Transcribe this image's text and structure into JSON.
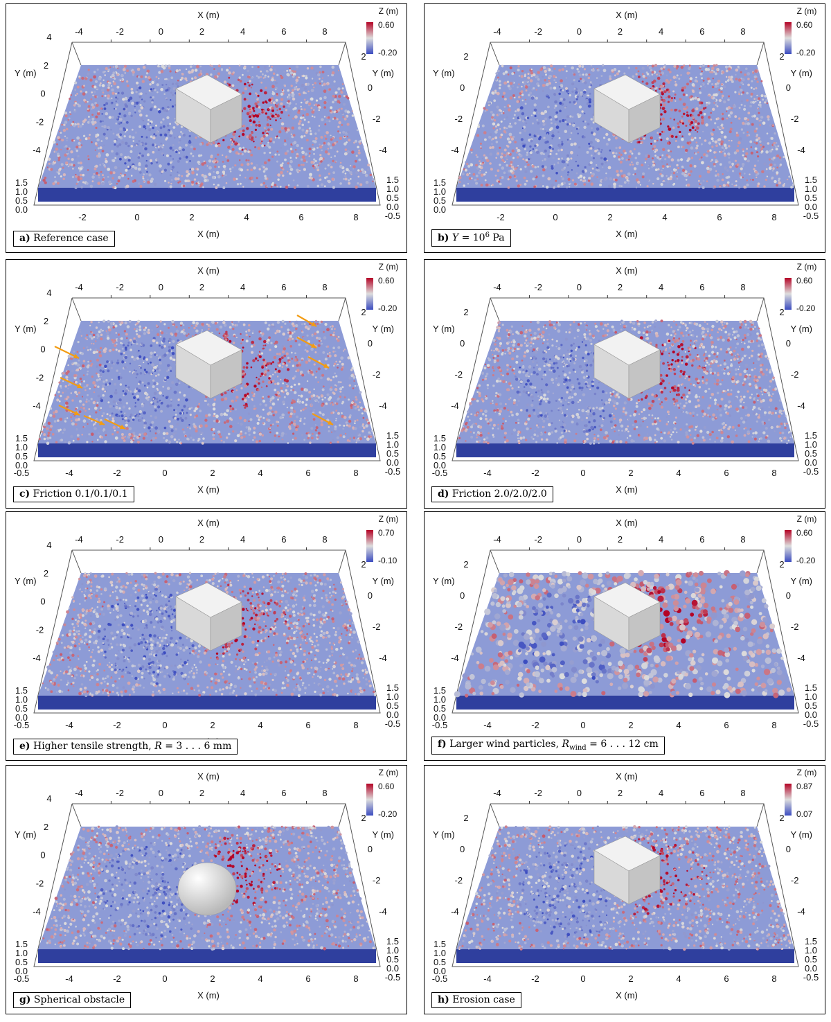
{
  "axis_labels": {
    "x": "X (m)",
    "y": "Y (m)",
    "z": "Z (m)"
  },
  "panels": [
    {
      "id": "a",
      "letter": "a)",
      "caption": "Reference case",
      "colorbar": {
        "max": "0.60",
        "min": "-0.20"
      },
      "x_ticks": [
        "-4",
        "-2",
        "0",
        "2",
        "4",
        "6",
        "8"
      ],
      "bottom_x_ticks": [
        "-2",
        "0",
        "2",
        "4",
        "6",
        "8"
      ],
      "y_ticks": [
        "4",
        "2",
        "0",
        "-2",
        "-4"
      ],
      "right_y_ticks": [
        "2",
        "0",
        "-2",
        "-4"
      ],
      "z_ticks": [
        "1.5",
        "1.0",
        "0.5",
        "0.0"
      ],
      "right_z_ticks": [
        "1.5",
        "1.0",
        "0.5",
        "0.0",
        "-0.5"
      ],
      "obstacle": "cube",
      "arrows": false,
      "large_particles": false
    },
    {
      "id": "b",
      "letter": "b)",
      "caption_parts": [
        "Y",
        " = 10",
        "6",
        " Pa"
      ],
      "colorbar": {
        "max": "0.60",
        "min": "-0.20"
      },
      "x_ticks": [
        "-4",
        "-2",
        "0",
        "2",
        "4",
        "6",
        "8"
      ],
      "bottom_x_ticks": [
        "-2",
        "0",
        "2",
        "4",
        "6",
        "8"
      ],
      "y_ticks": [
        "2",
        "0",
        "-2",
        "-4"
      ],
      "right_y_ticks": [
        "2",
        "0",
        "-2",
        "-4"
      ],
      "z_ticks": [
        "1.5",
        "1.0",
        "0.5",
        "0.0"
      ],
      "right_z_ticks": [
        "1.5",
        "1.0",
        "0.5",
        "0.0",
        "-0.5"
      ],
      "obstacle": "cube",
      "arrows": false,
      "large_particles": false
    },
    {
      "id": "c",
      "letter": "c)",
      "caption": "Friction 0.1/0.1/0.1",
      "colorbar": {
        "max": "0.60",
        "min": "-0.20"
      },
      "x_ticks": [
        "-4",
        "-2",
        "0",
        "2",
        "4",
        "6",
        "8"
      ],
      "bottom_x_ticks": [
        "-0.5",
        "-4",
        "-2",
        "0",
        "2",
        "4",
        "6",
        "8"
      ],
      "y_ticks": [
        "4",
        "2",
        "0",
        "-2",
        "-4"
      ],
      "right_y_ticks": [
        "2",
        "0",
        "-2",
        "-4"
      ],
      "z_ticks": [
        "1.5",
        "1.0",
        "0.5",
        "0.0"
      ],
      "right_z_ticks": [
        "1.5",
        "1.0",
        "0.5",
        "0.0",
        "-0.5"
      ],
      "obstacle": "cube",
      "arrows": true,
      "large_particles": false
    },
    {
      "id": "d",
      "letter": "d)",
      "caption": "Friction 2.0/2.0/2.0",
      "colorbar": {
        "max": "0.60",
        "min": "-0.20"
      },
      "x_ticks": [
        "-4",
        "-2",
        "0",
        "2",
        "4",
        "6",
        "8"
      ],
      "bottom_x_ticks": [
        "-0.5",
        "-4",
        "-2",
        "0",
        "2",
        "4",
        "6",
        "8"
      ],
      "y_ticks": [
        "2",
        "0",
        "-2",
        "-4"
      ],
      "right_y_ticks": [
        "2",
        "0",
        "-2",
        "-4"
      ],
      "z_ticks": [
        "1.5",
        "1.0",
        "0.5",
        "0.0"
      ],
      "right_z_ticks": [
        "1.5",
        "1.0",
        "0.5",
        "0.0",
        "-0.5"
      ],
      "obstacle": "cube",
      "arrows": false,
      "large_particles": false
    },
    {
      "id": "e",
      "letter": "e)",
      "caption_parts": [
        "Higher tensile strength, ",
        "R",
        " = 3 . . . 6 mm"
      ],
      "colorbar": {
        "max": "0.70",
        "min": "-0.10"
      },
      "x_ticks": [
        "-4",
        "-2",
        "0",
        "2",
        "4",
        "6",
        "8"
      ],
      "bottom_x_ticks": [
        "-0.5",
        "-4",
        "-2",
        "0",
        "2",
        "4",
        "6",
        "8"
      ],
      "y_ticks": [
        "4",
        "2",
        "0",
        "-2",
        "-4"
      ],
      "right_y_ticks": [
        "2",
        "0",
        "-2",
        "-4"
      ],
      "z_ticks": [
        "1.5",
        "1.0",
        "0.5",
        "0.0"
      ],
      "right_z_ticks": [
        "1.5",
        "1.0",
        "0.5",
        "0.0",
        "-0.5"
      ],
      "obstacle": "cube",
      "arrows": false,
      "large_particles": false
    },
    {
      "id": "f",
      "letter": "f)",
      "caption_parts": [
        "Larger wind particles, ",
        "R",
        "wind",
        " = 6 . . . 12 cm"
      ],
      "colorbar": {
        "max": "0.60",
        "min": "-0.20"
      },
      "x_ticks": [
        "-4",
        "-2",
        "0",
        "2",
        "4",
        "6",
        "8"
      ],
      "bottom_x_ticks": [
        "-0.5",
        "-4",
        "-2",
        "0",
        "2",
        "4",
        "6",
        "8"
      ],
      "y_ticks": [
        "2",
        "0",
        "-2",
        "-4"
      ],
      "right_y_ticks": [
        "2",
        "0",
        "-2",
        "-4"
      ],
      "z_ticks": [
        "1.5",
        "1.0",
        "0.5",
        "0.0"
      ],
      "right_z_ticks": [
        "1.5",
        "1.0",
        "0.5",
        "0.0",
        "-0.5"
      ],
      "obstacle": "cube",
      "arrows": false,
      "large_particles": true
    },
    {
      "id": "g",
      "letter": "g)",
      "caption": "Spherical obstacle",
      "colorbar": {
        "max": "0.60",
        "min": "-0.20"
      },
      "x_ticks": [
        "-4",
        "-2",
        "0",
        "2",
        "4",
        "6",
        "8"
      ],
      "bottom_x_ticks": [
        "-0.5",
        "-4",
        "-2",
        "0",
        "2",
        "4",
        "6",
        "8"
      ],
      "y_ticks": [
        "4",
        "2",
        "0",
        "-2",
        "-4"
      ],
      "right_y_ticks": [
        "2",
        "0",
        "-2",
        "-4"
      ],
      "z_ticks": [
        "1.5",
        "1.0",
        "0.5",
        "0.0"
      ],
      "right_z_ticks": [
        "1.5",
        "1.0",
        "0.5",
        "0.0",
        "-0.5"
      ],
      "obstacle": "sphere",
      "arrows": false,
      "large_particles": false
    },
    {
      "id": "h",
      "letter": "h)",
      "caption": "Erosion case",
      "colorbar": {
        "max": "0.87",
        "min": "0.07"
      },
      "x_ticks": [
        "-4",
        "-2",
        "0",
        "2",
        "4",
        "6",
        "8"
      ],
      "bottom_x_ticks": [
        "-0.5",
        "-4",
        "-2",
        "0",
        "2",
        "4",
        "6",
        "8"
      ],
      "y_ticks": [
        "2",
        "0",
        "-2",
        "-4"
      ],
      "right_y_ticks": [
        "2",
        "0",
        "-2",
        "-4"
      ],
      "z_ticks": [
        "1.5",
        "1.0",
        "0.5",
        "0.0"
      ],
      "right_z_ticks": [
        "1.5",
        "1.0",
        "0.5",
        "0.0",
        "-0.5"
      ],
      "obstacle": "cube",
      "arrows": false,
      "large_particles": false
    }
  ],
  "colors": {
    "low": "#3b4cc0",
    "mid": "#dddddd",
    "high": "#b40426",
    "arrow": "#f39c12"
  }
}
